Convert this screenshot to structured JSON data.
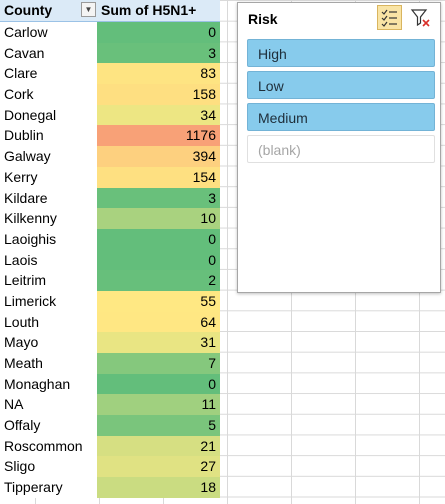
{
  "pivot": {
    "header_county": "County",
    "header_sum": "Sum of H5N1+",
    "rows": [
      {
        "county": "Carlow",
        "value": "0",
        "color": "#63be7b"
      },
      {
        "county": "Cavan",
        "value": "3",
        "color": "#69c07b"
      },
      {
        "county": "Clare",
        "value": "83",
        "color": "#fee482"
      },
      {
        "county": "Cork",
        "value": "158",
        "color": "#fedf81"
      },
      {
        "county": "Donegal",
        "value": "34",
        "color": "#ede683"
      },
      {
        "county": "Dublin",
        "value": "1176",
        "color": "#f8a177"
      },
      {
        "county": "Galway",
        "value": "394",
        "color": "#fdd07f"
      },
      {
        "county": "Kerry",
        "value": "154",
        "color": "#fee081"
      },
      {
        "county": "Kildare",
        "value": "3",
        "color": "#69c07b"
      },
      {
        "county": "Kilkenny",
        "value": "10",
        "color": "#a9d27f"
      },
      {
        "county": "Laoighis",
        "value": "0",
        "color": "#63be7b"
      },
      {
        "county": "Laois",
        "value": "0",
        "color": "#63be7b"
      },
      {
        "county": "Leitrim",
        "value": "2",
        "color": "#67bf7b"
      },
      {
        "county": "Limerick",
        "value": "55",
        "color": "#ffe883"
      },
      {
        "county": "Louth",
        "value": "64",
        "color": "#ffe783"
      },
      {
        "county": "Mayo",
        "value": "31",
        "color": "#e9e583"
      },
      {
        "county": "Meath",
        "value": "7",
        "color": "#85c87d"
      },
      {
        "county": "Monaghan",
        "value": "0",
        "color": "#63be7b"
      },
      {
        "county": "NA",
        "value": "11",
        "color": "#a0d07f"
      },
      {
        "county": "Offaly",
        "value": "5",
        "color": "#7ac57c"
      },
      {
        "county": "Roscommon",
        "value": "21",
        "color": "#d6df82"
      },
      {
        "county": "Sligo",
        "value": "27",
        "color": "#e0e283"
      },
      {
        "county": "Tipperary",
        "value": "18",
        "color": "#cadc81"
      }
    ]
  },
  "slicer": {
    "title": "Risk",
    "multi_select_icon": "multi-select-icon",
    "clear_filter_icon": "clear-filter-icon",
    "items": [
      {
        "label": "High",
        "selected": true
      },
      {
        "label": "Low",
        "selected": true
      },
      {
        "label": "Medium",
        "selected": true
      },
      {
        "label": "(blank)",
        "selected": false
      }
    ]
  }
}
